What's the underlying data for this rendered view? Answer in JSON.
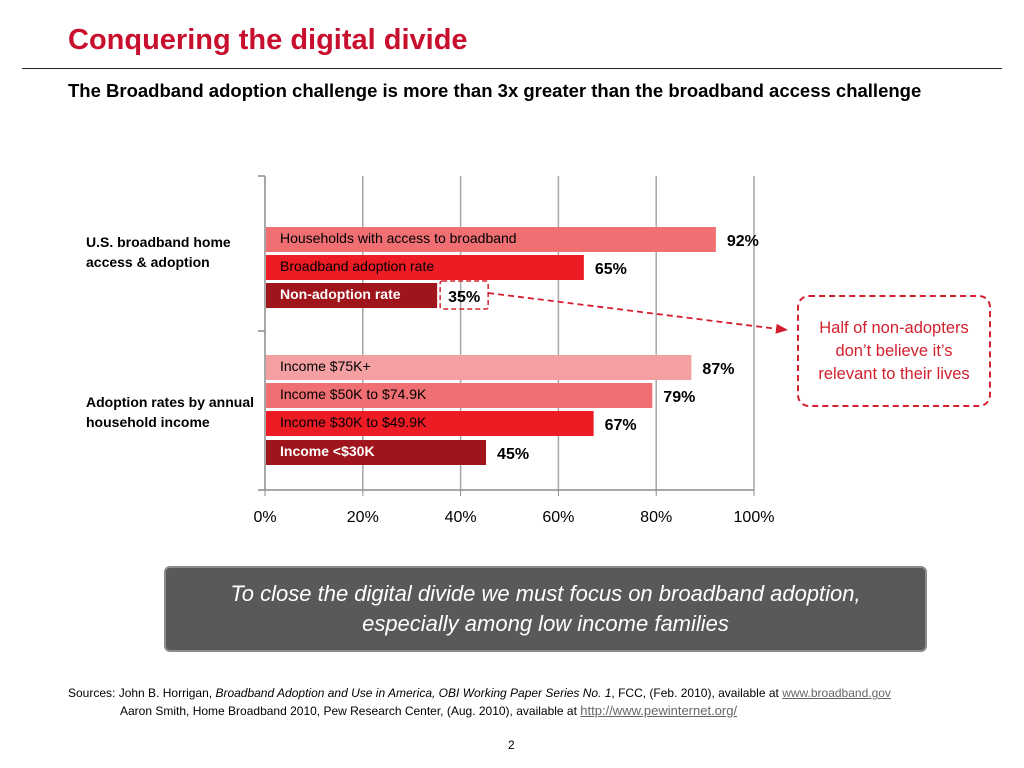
{
  "title": "Conquering the digital divide",
  "subtitle": "The Broadband adoption challenge is more than 3x greater than the broadband access challenge",
  "groups": {
    "access": "U.S. broadband home access & adoption",
    "income": "Adoption rates by annual household income"
  },
  "callout": "Half of non-adopters don’t believe it’s relevant to their lives",
  "message": "To close the digital divide we must focus on broadband adoption, especially among low income families",
  "sources": {
    "prefix": "Sources:",
    "s1_author": "John B. Horrigan,",
    "s1_title": "Broadband Adoption and Use in America, OBI Working Paper Series No. 1",
    "s1_rest": ", FCC, (Feb. 2010), available at",
    "s1_url": "www.broadband.gov",
    "s2_text": "Aaron Smith, Home Broadband 2010, Pew Research Center, (Aug. 2010), available at",
    "s2_url": "http://www.pewinternet.org/"
  },
  "page_number": "2",
  "chart_data": {
    "type": "bar",
    "orientation": "horizontal",
    "xlim": [
      0,
      100
    ],
    "xticks": [
      "0%",
      "20%",
      "40%",
      "60%",
      "80%",
      "100%"
    ],
    "grid": true,
    "categories": [
      "Households with access to broadband",
      "Broadband adoption rate",
      "Non-adoption rate",
      "Income $75K+",
      "Income $50K to $74.9K",
      "Income $30K to $49.9K",
      "Income <$30K"
    ],
    "values": [
      92,
      65,
      35,
      87,
      79,
      67,
      45
    ],
    "value_labels": [
      "92%",
      "65%",
      "35%",
      "87%",
      "79%",
      "67%",
      "45%"
    ],
    "bar_colors": [
      "#ef6f73",
      "#ed1c24",
      "#a0141b",
      "#f4a0a3",
      "#ef6f73",
      "#ed1c24",
      "#a0141b"
    ],
    "highlighted_label": "35%"
  },
  "colors": {
    "accent": "#c8102e",
    "callout": "#d3202f",
    "message_bg": "#595959"
  }
}
